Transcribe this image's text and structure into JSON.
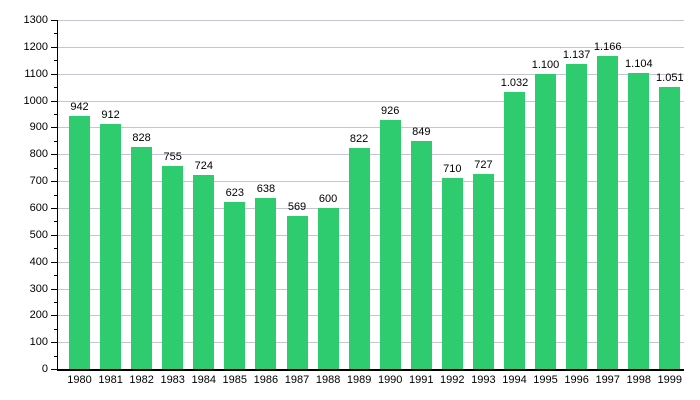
{
  "chart_data": {
    "type": "bar",
    "title": "",
    "xlabel": "",
    "ylabel": "",
    "categories": [
      "1980",
      "1981",
      "1982",
      "1983",
      "1984",
      "1985",
      "1986",
      "1987",
      "1988",
      "1989",
      "1990",
      "1991",
      "1992",
      "1993",
      "1994",
      "1995",
      "1996",
      "1997",
      "1998",
      "1999"
    ],
    "values": [
      942,
      912,
      828,
      755,
      724,
      623,
      638,
      569,
      600,
      822,
      926,
      849,
      710,
      727,
      1032,
      1100,
      1137,
      1166,
      1104,
      1051
    ],
    "value_labels": [
      "942",
      "912",
      "828",
      "755",
      "724",
      "623",
      "638",
      "569",
      "600",
      "822",
      "926",
      "849",
      "710",
      "727",
      "1.032",
      "1.100",
      "1.137",
      "1.166",
      "1.104",
      "1.051"
    ],
    "ylim": [
      0,
      1300
    ],
    "ytick_step": 100,
    "ytick_minor_step": 50,
    "ytick_labels": [
      "0",
      "100",
      "200",
      "300",
      "400",
      "500",
      "600",
      "700",
      "800",
      "900",
      "1000",
      "1100",
      "1200",
      "1300"
    ],
    "grid": "horizontal",
    "legend": "none",
    "bar_color": "#2ecc6e",
    "gridline_color": "#c3c3da",
    "axis_color": "#000000",
    "text_color": "#000000",
    "background_color": "#ffffff"
  }
}
